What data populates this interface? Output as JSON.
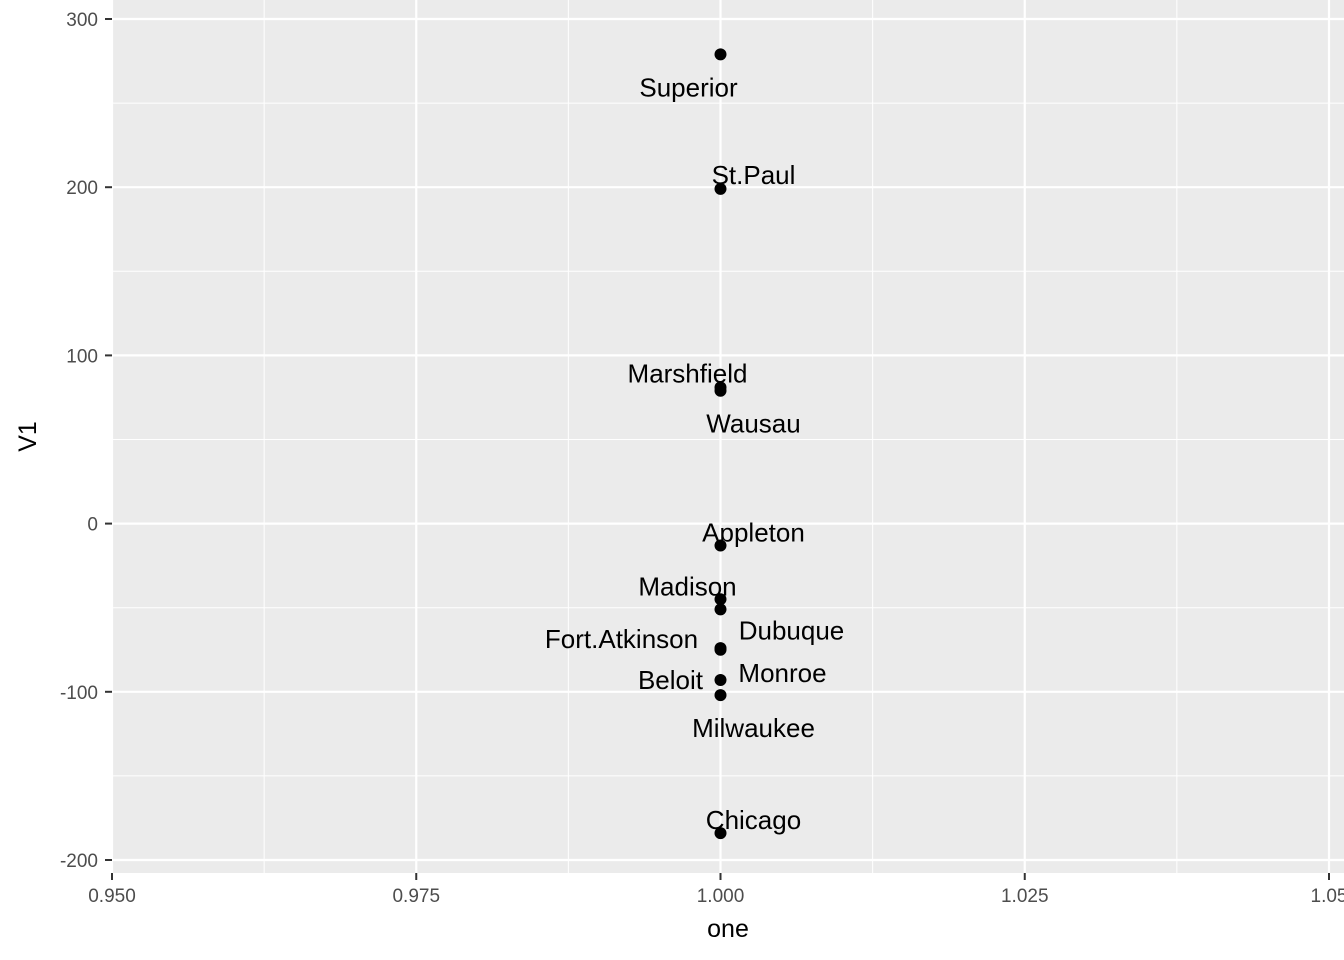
{
  "chart_data": {
    "type": "scatter",
    "title": "",
    "xlabel": "one",
    "ylabel": "V1",
    "xlim": [
      0.95,
      1.05
    ],
    "ylim": [
      -205,
      300
    ],
    "x_ticks": [
      0.95,
      0.975,
      1.0,
      1.025,
      1.05
    ],
    "x_tick_labels": [
      "0.950",
      "0.975",
      "1.000",
      "1.025",
      "1.05"
    ],
    "y_ticks": [
      -200,
      -100,
      0,
      100,
      200,
      300
    ],
    "y_tick_labels": [
      "-200",
      "-100",
      "0",
      "100",
      "200",
      "300"
    ],
    "grid": true,
    "panel_background": "#ebebeb",
    "grid_color": "#ffffff",
    "point_color": "#000000",
    "points": [
      {
        "label": "Superior",
        "x": 1.0,
        "y": 279
      },
      {
        "label": "St.Paul",
        "x": 1.0,
        "y": 199
      },
      {
        "label": "Marshfield",
        "x": 1.0,
        "y": 81
      },
      {
        "label": "Wausau",
        "x": 1.0,
        "y": 79
      },
      {
        "label": "Appleton",
        "x": 1.0,
        "y": -13
      },
      {
        "label": "Madison",
        "x": 1.0,
        "y": -45
      },
      {
        "label": "Dubuque",
        "x": 1.0,
        "y": -51
      },
      {
        "label": "Fort.Atkinson",
        "x": 1.0,
        "y": -74
      },
      {
        "label": "Monroe",
        "x": 1.0,
        "y": -75
      },
      {
        "label": "Beloit",
        "x": 1.0,
        "y": -93
      },
      {
        "label": "Milwaukee",
        "x": 1.0,
        "y": -102
      },
      {
        "label": "Chicago",
        "x": 1.0,
        "y": -184
      }
    ]
  }
}
